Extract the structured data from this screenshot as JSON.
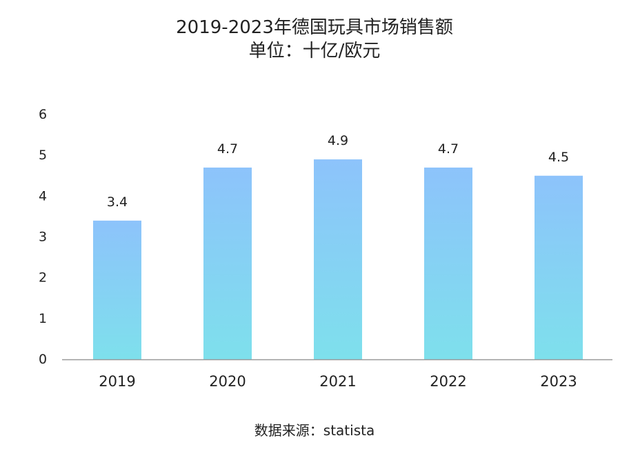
{
  "chart_data": {
    "type": "bar",
    "title": "2019-2023年德国玩具市场销售额",
    "subtitle": "单位：十亿/欧元",
    "categories": [
      "2019",
      "2020",
      "2021",
      "2022",
      "2023"
    ],
    "values": [
      3.4,
      4.7,
      4.9,
      4.7,
      4.5
    ],
    "value_labels": [
      "3.4",
      "4.7",
      "4.9",
      "4.7",
      "4.5"
    ],
    "y_ticks": [
      "0",
      "1",
      "2",
      "3",
      "4",
      "5",
      "6"
    ],
    "ylim": [
      0,
      6
    ],
    "xlabel": "",
    "ylabel": "",
    "grid": false,
    "bar_color_top": "#8dc3fb",
    "bar_color_bottom": "#7ee0ec",
    "axis_color": "#999999"
  },
  "source": {
    "label": "数据来源：",
    "name": "statista"
  }
}
